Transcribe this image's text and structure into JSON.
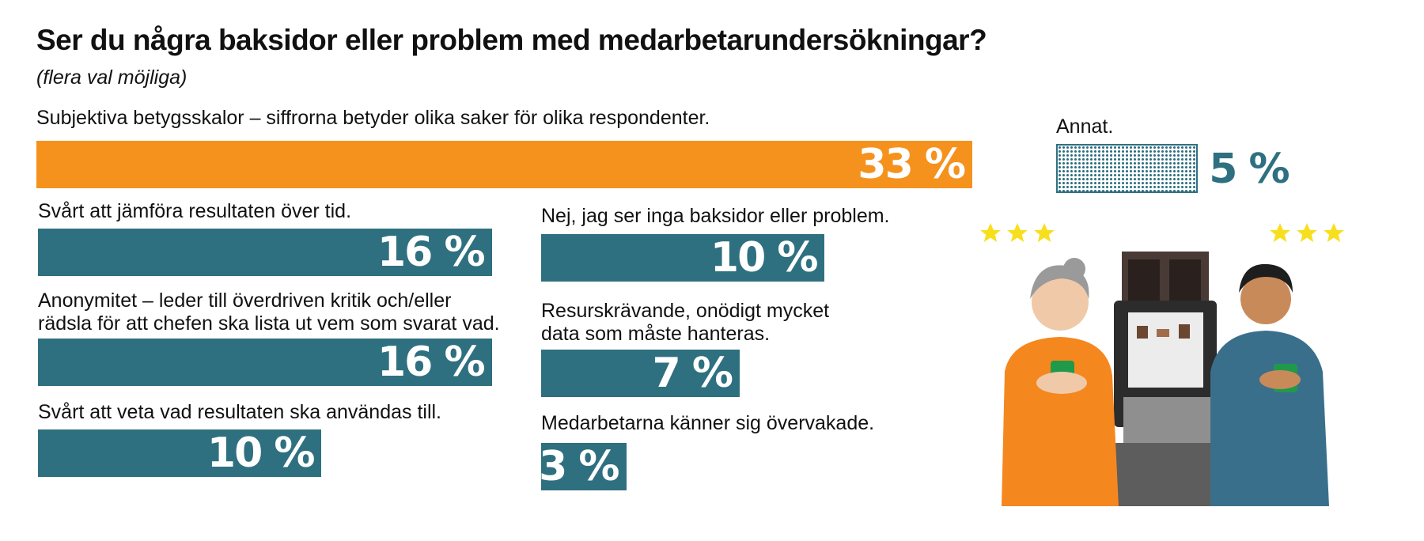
{
  "title": "Ser du några baksidor eller problem med medarbetarundersökningar?",
  "subtitle": "(flera val möjliga)",
  "colors": {
    "highlight": "#f5921e",
    "primary": "#2f7080",
    "other_pattern": "#2f7080"
  },
  "illustration_icons": [
    "star-icon",
    "coffee-machine-icon",
    "woman-with-cup-icon",
    "man-with-cup-icon"
  ],
  "chart_data": {
    "type": "bar",
    "orientation": "horizontal",
    "unit": "%",
    "categories": [
      "Subjektiva betygsskalor – siffrorna betyder olika saker för olika respondenter.",
      "Svårt att jämföra resultaten över tid.",
      "Anonymitet – leder till överdriven kritik och/eller\nrädsla för att chefen ska lista ut vem som svarat vad.",
      "Svårt att veta vad resultaten ska användas till.",
      "Nej, jag ser inga baksidor eller problem.",
      "Resurskrävande, onödigt mycket\ndata som måste hanteras.",
      "Medarbetarna känner sig övervakade.",
      "Annat."
    ],
    "values": [
      33,
      16,
      16,
      10,
      10,
      7,
      3,
      5
    ],
    "value_labels": [
      "33 %",
      "16 %",
      "16 %",
      "10 %",
      "10 %",
      "7 %",
      "3 %",
      "5 %"
    ],
    "highlighted": [
      true,
      false,
      false,
      false,
      false,
      false,
      false,
      false
    ],
    "patterned": [
      false,
      false,
      false,
      false,
      false,
      false,
      false,
      true
    ],
    "xlim": [
      0,
      33
    ]
  }
}
